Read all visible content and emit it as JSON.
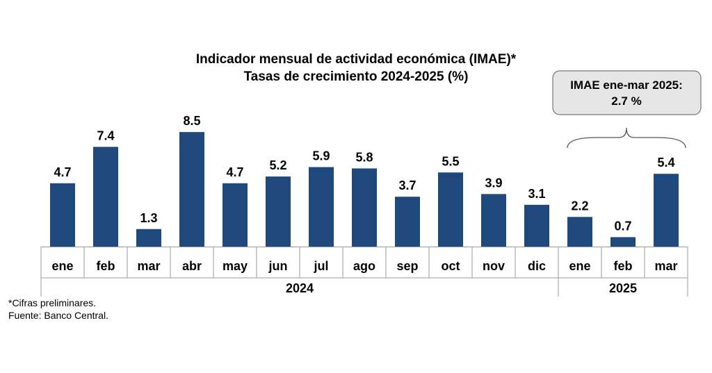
{
  "chart_data": {
    "type": "bar",
    "title": "Indicador mensual de actividad económica (IMAE)*",
    "subtitle": "Tasas de crecimiento 2024-2025 (%)",
    "categories": [
      "ene",
      "feb",
      "mar",
      "abr",
      "may",
      "jun",
      "jul",
      "ago",
      "sep",
      "oct",
      "nov",
      "dic",
      "ene",
      "feb",
      "mar"
    ],
    "groups": [
      {
        "label": "2024",
        "count": 12
      },
      {
        "label": "2025",
        "count": 3
      }
    ],
    "values": [
      4.7,
      7.4,
      1.3,
      8.5,
      4.7,
      5.2,
      5.9,
      5.8,
      3.7,
      5.5,
      3.9,
      3.1,
      2.2,
      0.7,
      5.4
    ],
    "value_labels": [
      "4.7",
      "7.4",
      "1.3",
      "8.5",
      "4.7",
      "5.2",
      "5.9",
      "5.8",
      "3.7",
      "5.5",
      "3.9",
      "3.1",
      "2.2",
      "0.7",
      "5.4"
    ],
    "ylim": [
      0,
      9.5
    ],
    "bar_color": "#1f497d",
    "grid": false,
    "annotation": {
      "line1": "IMAE ene-mar 2025:",
      "line2": "2.7 %",
      "fill": "#e6e6e6"
    }
  },
  "notes": {
    "line1": "*Cifras preliminares.",
    "line2": "Fuente: Banco Central."
  }
}
